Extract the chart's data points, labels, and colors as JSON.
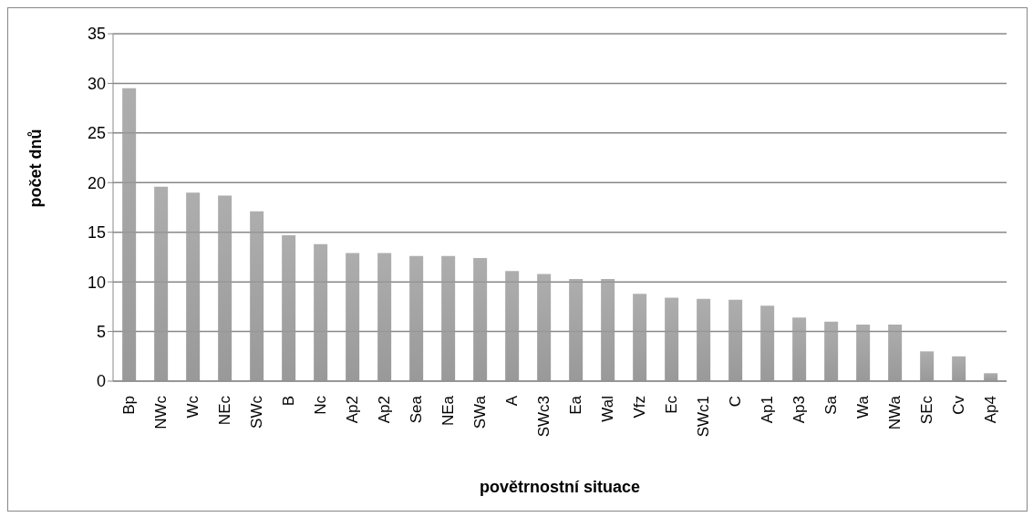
{
  "chart_data": {
    "type": "bar",
    "xlabel": "povětrnostní situace",
    "ylabel": "počet dnů",
    "categories": [
      "Bp",
      "NWc",
      "Wc",
      "NEc",
      "SWc",
      "B",
      "Nc",
      "Ap2",
      "Ap2",
      "Sea",
      "NEa",
      "SWa",
      "A",
      "SWc3",
      "Ea",
      "Wal",
      "Vfz",
      "Ec",
      "SWc1",
      "C",
      "Ap1",
      "Ap3",
      "Sa",
      "Wa",
      "NWa",
      "SEc",
      "Cv",
      "Ap4"
    ],
    "values": [
      29.5,
      19.6,
      19.0,
      18.7,
      17.1,
      14.7,
      13.8,
      12.9,
      12.9,
      12.6,
      12.6,
      12.4,
      11.1,
      10.8,
      10.3,
      10.3,
      8.8,
      8.4,
      8.3,
      8.2,
      7.6,
      6.4,
      6.0,
      5.7,
      5.7,
      3.0,
      2.5,
      0.8
    ],
    "color": "#999999",
    "ylim": [
      0,
      35
    ],
    "yticks": [
      0,
      5,
      10,
      15,
      20,
      25,
      30,
      35
    ],
    "grid": "y"
  }
}
